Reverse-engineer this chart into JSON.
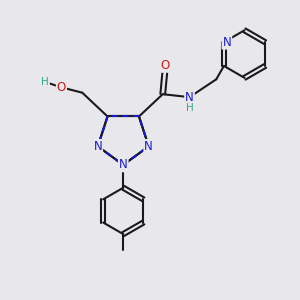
{
  "bg_color": "#e8e8ec",
  "bond_color": "#1a1a1a",
  "n_color": "#1a1acc",
  "o_color": "#cc1a1a",
  "h_color": "#2aaa88",
  "font_size": 8.5,
  "fig_size": [
    3.0,
    3.0
  ],
  "dpi": 100,
  "xlim": [
    0,
    10
  ],
  "ylim": [
    0,
    10
  ]
}
